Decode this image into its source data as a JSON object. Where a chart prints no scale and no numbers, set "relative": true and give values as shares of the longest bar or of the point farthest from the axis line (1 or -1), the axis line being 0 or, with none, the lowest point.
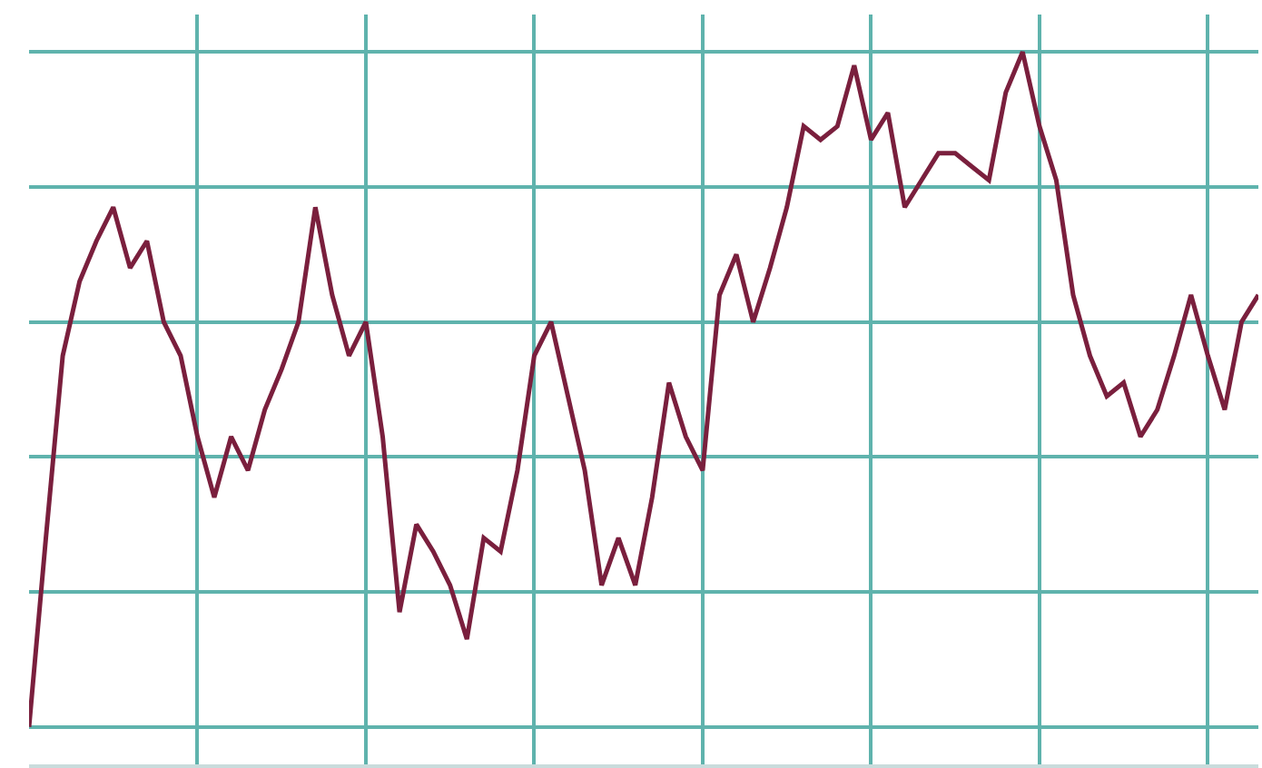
{
  "chart_data": {
    "type": "line",
    "relative": true,
    "grid": true,
    "categories": [
      null,
      null,
      null,
      null,
      null,
      null,
      null,
      null,
      null,
      null,
      null,
      null,
      null,
      null,
      null,
      null,
      null,
      null,
      null,
      null,
      null,
      null,
      null,
      null,
      null,
      null,
      null,
      null,
      null,
      null,
      null,
      null,
      null,
      null,
      null,
      null,
      null,
      null,
      null,
      null,
      null,
      null,
      null,
      null,
      null,
      null,
      null,
      null,
      null,
      null,
      null,
      null,
      null,
      null,
      null,
      null,
      null,
      null,
      null,
      null,
      null,
      null,
      null,
      null,
      null,
      null,
      null,
      null,
      null,
      null,
      null,
      null,
      null,
      null
    ],
    "series": [
      {
        "color": "#7a1f3d",
        "values": [
          0,
          0.28,
          0.55,
          0.66,
          0.72,
          0.77,
          0.68,
          0.72,
          0.6,
          0.55,
          0.43,
          0.34,
          0.43,
          0.38,
          0.47,
          0.53,
          0.6,
          0.77,
          0.64,
          0.55,
          0.6,
          0.43,
          0.17,
          0.3,
          0.26,
          0.21,
          0.13,
          0.28,
          0.26,
          0.38,
          0.55,
          0.6,
          0.49,
          0.38,
          0.21,
          0.28,
          0.21,
          0.34,
          0.51,
          0.43,
          0.38,
          0.64,
          0.7,
          0.6,
          0.68,
          0.77,
          0.89,
          0.87,
          0.89,
          0.98,
          0.87,
          0.91,
          0.77,
          0.81,
          0.85,
          0.85,
          0.83,
          0.81,
          0.94,
          1,
          0.89,
          0.81,
          0.64,
          0.55,
          0.49,
          0.51,
          0.43,
          0.47,
          0.55,
          0.64,
          0.55,
          0.47,
          0.6,
          0.64
        ]
      }
    ]
  }
}
